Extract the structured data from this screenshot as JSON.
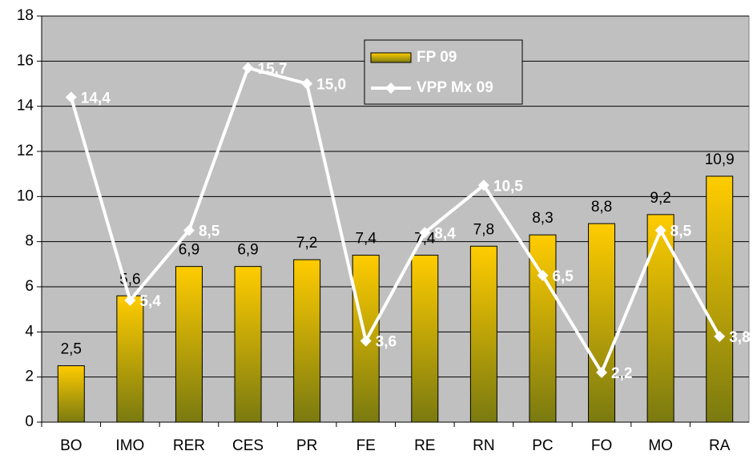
{
  "chart_data": {
    "type": "bar-line",
    "categories": [
      "BO",
      "IMO",
      "RER",
      "CES",
      "PR",
      "FE",
      "RE",
      "RN",
      "PC",
      "FO",
      "MO",
      "RA"
    ],
    "series": [
      {
        "name": "FP 09",
        "type": "bar",
        "color": "#ffcc00",
        "values": [
          2.5,
          5.6,
          6.9,
          6.9,
          7.2,
          7.4,
          7.4,
          7.8,
          8.3,
          8.8,
          9.2,
          10.9
        ],
        "value_labels": [
          "2,5",
          "5,6",
          "6,9",
          "6,9",
          "7,2",
          "7,4",
          "7,4",
          "7,8",
          "8,3",
          "8,8",
          "9,2",
          "10,9"
        ]
      },
      {
        "name": "VPP Mx 09",
        "type": "line",
        "color": "#ffffff",
        "values": [
          14.4,
          5.4,
          8.5,
          15.7,
          15.0,
          3.6,
          8.4,
          10.5,
          6.5,
          2.2,
          8.5,
          3.8
        ],
        "value_labels": [
          "14,4",
          "5,4",
          "8,5",
          "15,7",
          "15,0",
          "3,6",
          "8,4",
          "10,5",
          "6,5",
          "2,2",
          "8,5",
          "3,8"
        ]
      }
    ],
    "ylim": [
      0,
      18
    ],
    "yticks": [
      0,
      2,
      4,
      6,
      8,
      10,
      12,
      14,
      16,
      18
    ],
    "grid": true,
    "legend": "top"
  }
}
